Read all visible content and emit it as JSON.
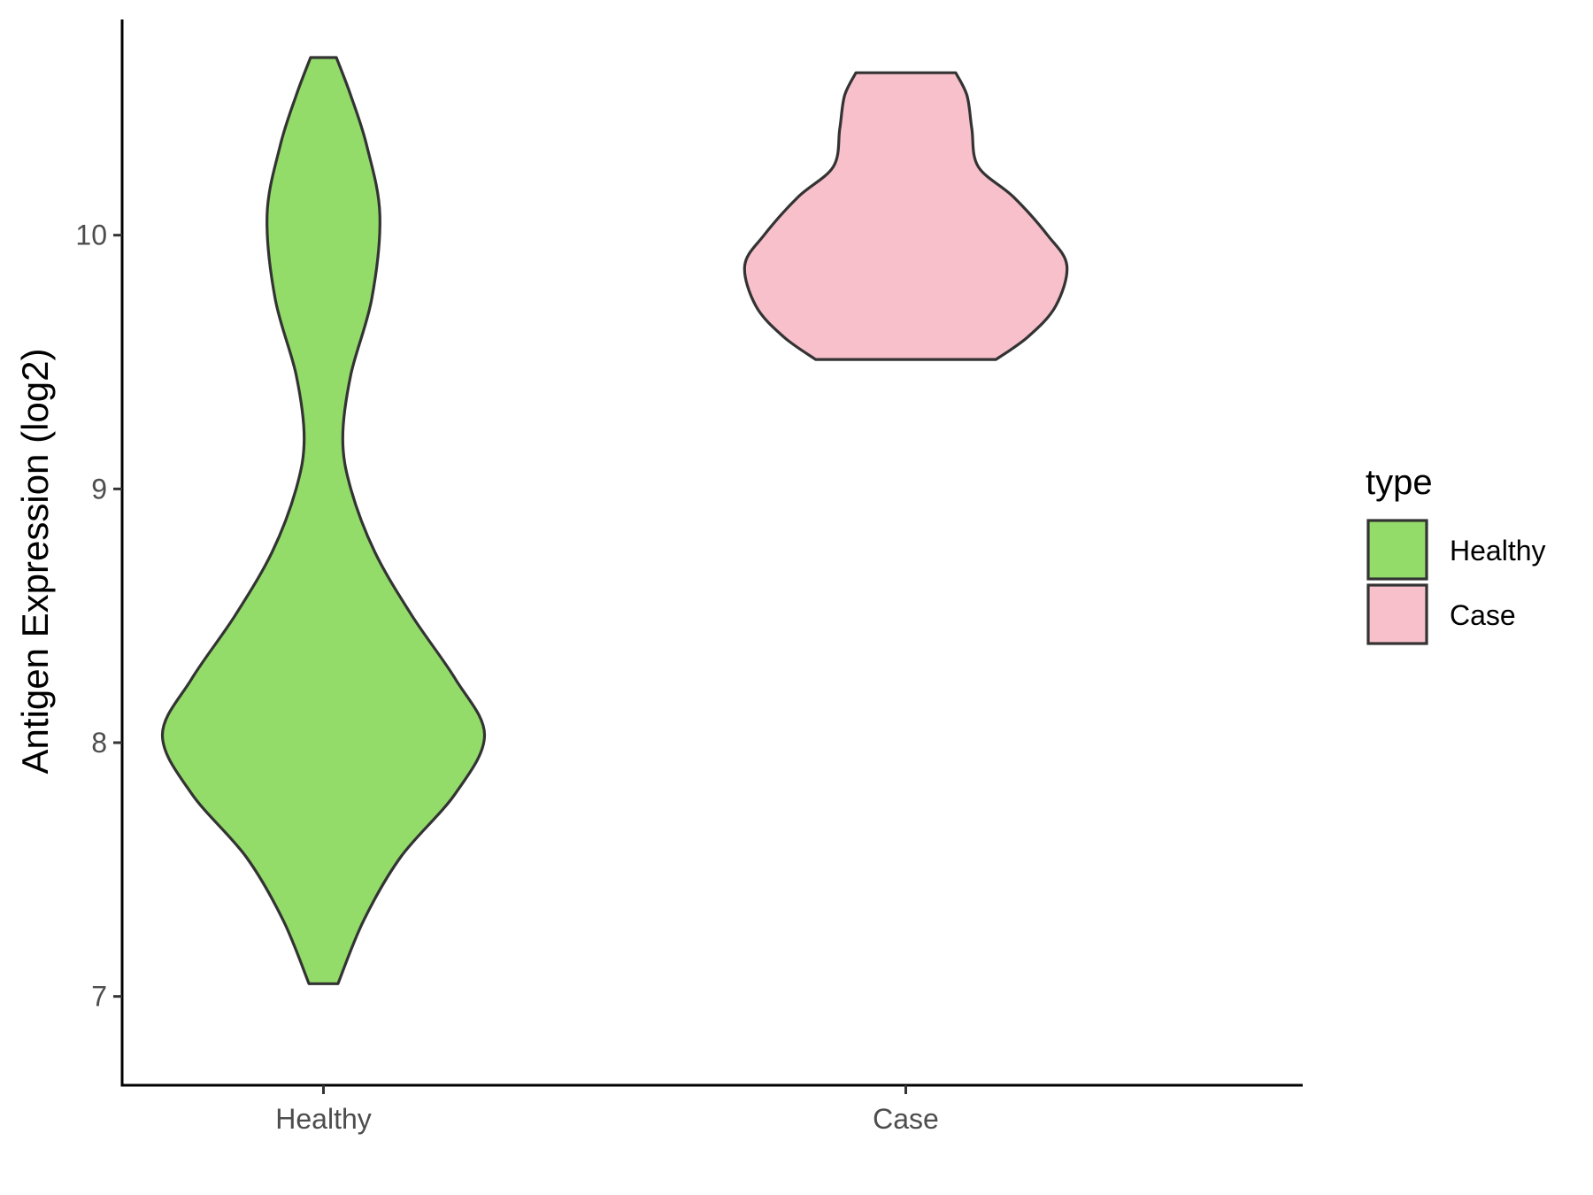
{
  "chart_data": {
    "type": "violin",
    "title": "",
    "xlabel": "",
    "ylabel": "Antigen Expression (log2)",
    "ylim": [
      6.65,
      10.85
    ],
    "yticks": [
      7,
      8,
      9,
      10
    ],
    "categories": [
      "Healthy",
      "Case"
    ],
    "legend": {
      "title": "type",
      "position": "right"
    },
    "grid": false,
    "series": [
      {
        "name": "Healthy",
        "color": "#93dc6a",
        "min": 7.05,
        "max": 10.7,
        "density_profile": [
          [
            7.05,
            0.09
          ],
          [
            7.3,
            0.25
          ],
          [
            7.55,
            0.48
          ],
          [
            7.8,
            0.82
          ],
          [
            8.03,
            1.0
          ],
          [
            8.25,
            0.82
          ],
          [
            8.5,
            0.55
          ],
          [
            8.75,
            0.32
          ],
          [
            9.0,
            0.17
          ],
          [
            9.2,
            0.12
          ],
          [
            9.45,
            0.17
          ],
          [
            9.75,
            0.3
          ],
          [
            10.08,
            0.35
          ],
          [
            10.35,
            0.27
          ],
          [
            10.55,
            0.17
          ],
          [
            10.7,
            0.08
          ]
        ]
      },
      {
        "name": "Case",
        "color": "#f7c0cb",
        "min": 9.51,
        "max": 10.64,
        "density_profile": [
          [
            9.51,
            0.56
          ],
          [
            9.6,
            0.76
          ],
          [
            9.72,
            0.93
          ],
          [
            9.88,
            1.0
          ],
          [
            10.0,
            0.88
          ],
          [
            10.15,
            0.67
          ],
          [
            10.27,
            0.45
          ],
          [
            10.42,
            0.41
          ],
          [
            10.55,
            0.38
          ],
          [
            10.64,
            0.31
          ]
        ]
      }
    ]
  }
}
